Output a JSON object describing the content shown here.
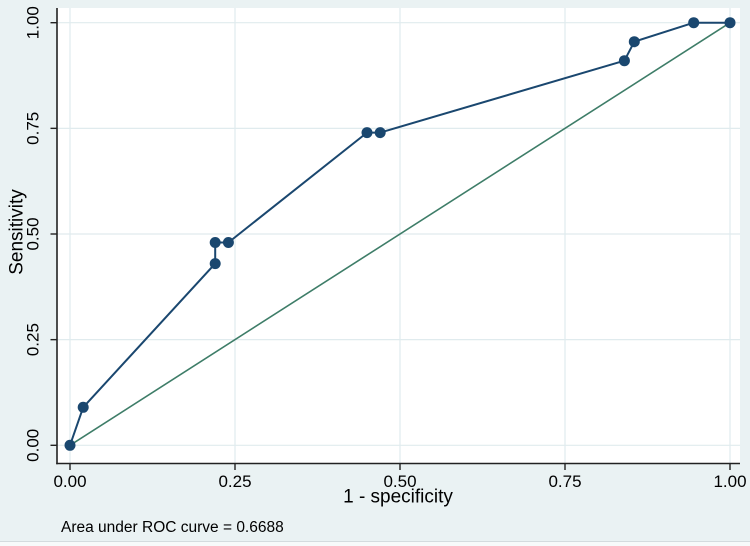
{
  "figure": {
    "background_color": "#eaf2f3",
    "plot_background_color": "#ffffff",
    "grid_color": "#e0ebee",
    "axis_line_color": "#222222",
    "tick_text_color": "#000000",
    "bottom_strip_color": "#f7fafa",
    "caption": "Area under ROC curve = 0.6688"
  },
  "chart_data": {
    "type": "line",
    "title": "",
    "xlabel": "1 - specificity",
    "ylabel": "Sensitivity",
    "xlim": [
      0,
      1
    ],
    "ylim": [
      0,
      1
    ],
    "grid": true,
    "legend": "none",
    "xticks": [
      0.0,
      0.25,
      0.5,
      0.75,
      1.0
    ],
    "yticks": [
      0.0,
      0.25,
      0.5,
      0.75,
      1.0
    ],
    "xtick_labels": [
      "0.00",
      "0.25",
      "0.50",
      "0.75",
      "1.00"
    ],
    "ytick_labels": [
      "0.00",
      "0.25",
      "0.50",
      "0.75",
      "1.00"
    ],
    "series": [
      {
        "name": "ROC curve",
        "color": "#1a476f",
        "marker": "circle",
        "marker_radius": 5.5,
        "line_width": 2,
        "points": [
          [
            0.0,
            0.0
          ],
          [
            0.02,
            0.09
          ],
          [
            0.22,
            0.43
          ],
          [
            0.22,
            0.48
          ],
          [
            0.24,
            0.48
          ],
          [
            0.45,
            0.74
          ],
          [
            0.47,
            0.74
          ],
          [
            0.84,
            0.91
          ],
          [
            0.855,
            0.955
          ],
          [
            0.945,
            1.0
          ],
          [
            1.0,
            1.0
          ]
        ]
      },
      {
        "name": "Reference line",
        "color": "#3e7d68",
        "marker": "none",
        "marker_radius": 0,
        "line_width": 1.6,
        "points": [
          [
            0.0,
            0.0
          ],
          [
            1.0,
            1.0
          ]
        ]
      }
    ],
    "annotations": [
      "Area under ROC curve = 0.6688"
    ]
  }
}
